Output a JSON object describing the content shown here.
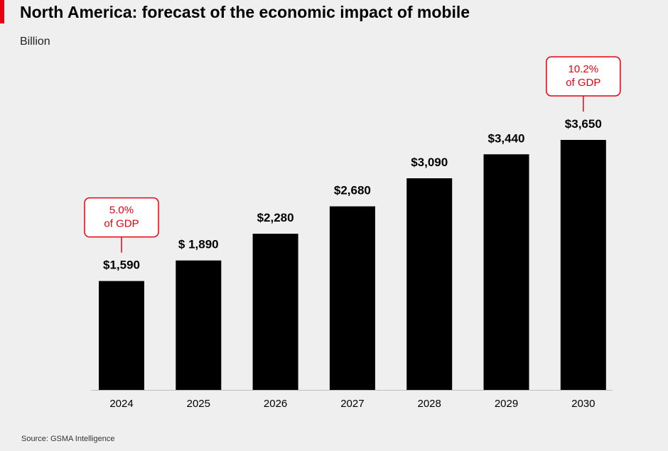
{
  "header": {
    "title": "North America: forecast of the economic impact of mobile",
    "subtitle": "Billion"
  },
  "footer": {
    "source": "Source: GSMA Intelligence"
  },
  "colors": {
    "accent": "#e60012",
    "bar": "#000000",
    "background": "#efefef"
  },
  "chart_data": {
    "type": "bar",
    "title": "North America: forecast of the economic impact of mobile",
    "ylabel": "Billion",
    "categories": [
      "2024",
      "2025",
      "2026",
      "2027",
      "2028",
      "2029",
      "2030"
    ],
    "values": [
      1590,
      1890,
      2280,
      2680,
      3090,
      3440,
      3650
    ],
    "value_labels": [
      "$1,590",
      "$ 1,890",
      "$2,280",
      "$2,680",
      "$3,090",
      "$3,440",
      "$3,650"
    ],
    "annotations": [
      {
        "category": "2024",
        "lines": [
          "5.0%",
          "of GDP"
        ]
      },
      {
        "category": "2030",
        "lines": [
          "10.2%",
          "of GDP"
        ]
      }
    ],
    "ylim": [
      0,
      3650
    ],
    "grid": false,
    "legend": "none"
  }
}
